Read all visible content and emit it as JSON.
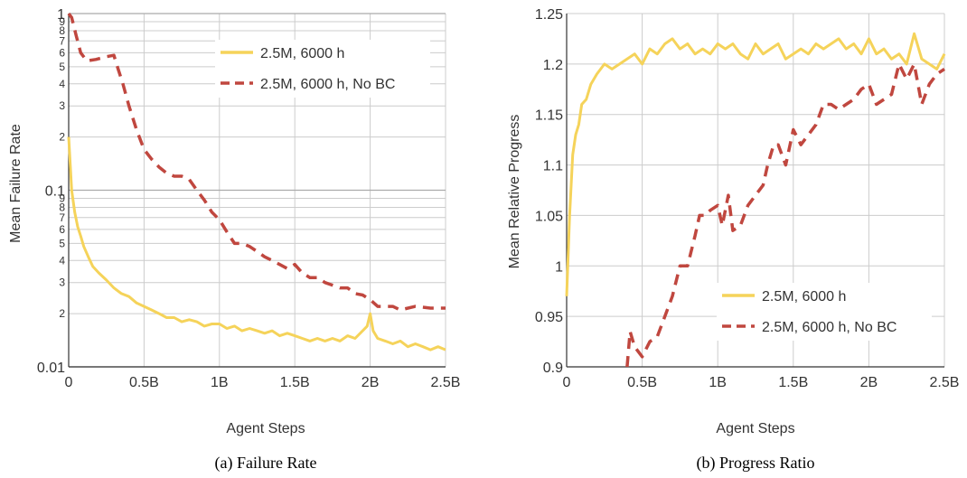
{
  "colors": {
    "fail_series_a": "#f5d35a",
    "fail_series_b": "#c0473f",
    "grid": "#cccccc",
    "axis": "#333333"
  },
  "chart_data": [
    {
      "type": "line",
      "caption": "(a) Failure Rate",
      "xlabel": "Agent Steps",
      "ylabel": "Mean Failure Rate",
      "yscale": "log",
      "xlim": [
        0,
        2.5
      ],
      "ylim": [
        0.01,
        1
      ],
      "x_ticks": [
        {
          "value": 0,
          "label": "0"
        },
        {
          "value": 0.5,
          "label": "0.5B"
        },
        {
          "value": 1,
          "label": "1B"
        },
        {
          "value": 1.5,
          "label": "1.5B"
        },
        {
          "value": 2,
          "label": "2B"
        },
        {
          "value": 2.5,
          "label": "2.5B"
        }
      ],
      "y_major_ticks": [
        {
          "value": 0.01,
          "label": "0.01"
        },
        {
          "value": 0.1,
          "label": "0.1"
        },
        {
          "value": 1,
          "label": "1"
        }
      ],
      "y_minor_ticks": [
        {
          "value": 0.02,
          "label": "2"
        },
        {
          "value": 0.03,
          "label": "3"
        },
        {
          "value": 0.04,
          "label": "4"
        },
        {
          "value": 0.05,
          "label": "5"
        },
        {
          "value": 0.06,
          "label": "6"
        },
        {
          "value": 0.07,
          "label": "7"
        },
        {
          "value": 0.08,
          "label": "8"
        },
        {
          "value": 0.09,
          "label": "9"
        },
        {
          "value": 0.2,
          "label": "2"
        },
        {
          "value": 0.3,
          "label": "3"
        },
        {
          "value": 0.4,
          "label": "4"
        },
        {
          "value": 0.5,
          "label": "5"
        },
        {
          "value": 0.6,
          "label": "6"
        },
        {
          "value": 0.7,
          "label": "7"
        },
        {
          "value": 0.8,
          "label": "8"
        },
        {
          "value": 0.9,
          "label": "9"
        }
      ],
      "legend_position": "top-right",
      "series": [
        {
          "name": "2.5M, 6000 h",
          "style": "solid",
          "x": [
            0.0,
            0.02,
            0.04,
            0.06,
            0.08,
            0.1,
            0.13,
            0.16,
            0.2,
            0.25,
            0.3,
            0.35,
            0.4,
            0.45,
            0.5,
            0.55,
            0.6,
            0.65,
            0.7,
            0.75,
            0.8,
            0.85,
            0.9,
            0.95,
            1.0,
            1.05,
            1.1,
            1.15,
            1.2,
            1.25,
            1.3,
            1.35,
            1.4,
            1.45,
            1.5,
            1.55,
            1.6,
            1.65,
            1.7,
            1.75,
            1.8,
            1.85,
            1.9,
            1.95,
            1.98,
            2.0,
            2.02,
            2.05,
            2.1,
            2.15,
            2.2,
            2.25,
            2.3,
            2.35,
            2.4,
            2.45,
            2.5
          ],
          "y": [
            0.2,
            0.1,
            0.075,
            0.062,
            0.055,
            0.048,
            0.042,
            0.037,
            0.034,
            0.031,
            0.028,
            0.026,
            0.025,
            0.023,
            0.022,
            0.021,
            0.02,
            0.019,
            0.019,
            0.018,
            0.0185,
            0.018,
            0.017,
            0.0175,
            0.0175,
            0.0165,
            0.017,
            0.016,
            0.0165,
            0.016,
            0.0155,
            0.016,
            0.015,
            0.0155,
            0.015,
            0.0145,
            0.014,
            0.0145,
            0.014,
            0.0145,
            0.014,
            0.015,
            0.0145,
            0.016,
            0.017,
            0.02,
            0.016,
            0.0145,
            0.014,
            0.0135,
            0.014,
            0.013,
            0.0135,
            0.013,
            0.0125,
            0.013,
            0.0125
          ]
        },
        {
          "name": "2.5M, 6000 h, No BC",
          "style": "dashed",
          "x": [
            0.0,
            0.02,
            0.05,
            0.08,
            0.12,
            0.18,
            0.25,
            0.3,
            0.33,
            0.36,
            0.4,
            0.45,
            0.5,
            0.55,
            0.6,
            0.65,
            0.7,
            0.75,
            0.8,
            0.85,
            0.9,
            0.95,
            1.0,
            1.05,
            1.1,
            1.15,
            1.2,
            1.25,
            1.3,
            1.35,
            1.4,
            1.45,
            1.5,
            1.55,
            1.6,
            1.65,
            1.7,
            1.75,
            1.8,
            1.85,
            1.9,
            1.95,
            2.0,
            2.05,
            2.1,
            2.15,
            2.2,
            2.3,
            2.4,
            2.5
          ],
          "y": [
            1.0,
            0.95,
            0.75,
            0.6,
            0.54,
            0.55,
            0.57,
            0.58,
            0.48,
            0.4,
            0.3,
            0.22,
            0.17,
            0.15,
            0.135,
            0.125,
            0.12,
            0.12,
            0.115,
            0.1,
            0.088,
            0.075,
            0.068,
            0.058,
            0.05,
            0.05,
            0.048,
            0.045,
            0.042,
            0.04,
            0.038,
            0.036,
            0.038,
            0.034,
            0.032,
            0.032,
            0.03,
            0.029,
            0.028,
            0.028,
            0.026,
            0.0255,
            0.024,
            0.022,
            0.022,
            0.022,
            0.021,
            0.022,
            0.0215,
            0.0215
          ]
        }
      ]
    },
    {
      "type": "line",
      "caption": "(b) Progress Ratio",
      "xlabel": "Agent Steps",
      "ylabel": "Mean Relative Progress",
      "xlim": [
        0,
        2.5
      ],
      "ylim": [
        0.9,
        1.25
      ],
      "x_ticks": [
        {
          "value": 0,
          "label": "0"
        },
        {
          "value": 0.5,
          "label": "0.5B"
        },
        {
          "value": 1,
          "label": "1B"
        },
        {
          "value": 1.5,
          "label": "1.5B"
        },
        {
          "value": 2,
          "label": "2B"
        },
        {
          "value": 2.5,
          "label": "2.5B"
        }
      ],
      "y_ticks": [
        {
          "value": 0.9,
          "label": "0.9"
        },
        {
          "value": 0.95,
          "label": "0.95"
        },
        {
          "value": 1.0,
          "label": "1"
        },
        {
          "value": 1.05,
          "label": "1.05"
        },
        {
          "value": 1.1,
          "label": "1.1"
        },
        {
          "value": 1.15,
          "label": "1.15"
        },
        {
          "value": 1.2,
          "label": "1.2"
        },
        {
          "value": 1.25,
          "label": "1.25"
        }
      ],
      "legend_position": "bottom-right",
      "series": [
        {
          "name": "2.5M, 6000 h",
          "style": "solid",
          "x": [
            0.0,
            0.02,
            0.04,
            0.06,
            0.08,
            0.1,
            0.13,
            0.16,
            0.2,
            0.25,
            0.3,
            0.35,
            0.4,
            0.45,
            0.5,
            0.55,
            0.6,
            0.65,
            0.7,
            0.75,
            0.8,
            0.85,
            0.9,
            0.95,
            1.0,
            1.05,
            1.1,
            1.15,
            1.2,
            1.25,
            1.3,
            1.35,
            1.4,
            1.45,
            1.5,
            1.55,
            1.6,
            1.65,
            1.7,
            1.75,
            1.8,
            1.85,
            1.9,
            1.95,
            2.0,
            2.05,
            2.1,
            2.15,
            2.2,
            2.25,
            2.3,
            2.35,
            2.4,
            2.45,
            2.5
          ],
          "y": [
            0.97,
            1.05,
            1.11,
            1.13,
            1.14,
            1.16,
            1.165,
            1.18,
            1.19,
            1.2,
            1.195,
            1.2,
            1.205,
            1.21,
            1.2,
            1.215,
            1.21,
            1.22,
            1.225,
            1.215,
            1.22,
            1.21,
            1.215,
            1.21,
            1.22,
            1.215,
            1.22,
            1.21,
            1.205,
            1.22,
            1.21,
            1.215,
            1.22,
            1.205,
            1.21,
            1.215,
            1.21,
            1.22,
            1.215,
            1.22,
            1.225,
            1.215,
            1.22,
            1.21,
            1.225,
            1.21,
            1.215,
            1.205,
            1.21,
            1.2,
            1.23,
            1.205,
            1.2,
            1.195,
            1.21
          ]
        },
        {
          "name": "2.5M, 6000 h, No BC",
          "style": "dashed",
          "x": [
            0.4,
            0.42,
            0.45,
            0.5,
            0.55,
            0.6,
            0.65,
            0.7,
            0.75,
            0.8,
            0.85,
            0.88,
            0.92,
            0.95,
            1.0,
            1.03,
            1.07,
            1.1,
            1.15,
            1.2,
            1.25,
            1.3,
            1.33,
            1.37,
            1.4,
            1.45,
            1.5,
            1.55,
            1.6,
            1.65,
            1.7,
            1.75,
            1.8,
            1.85,
            1.9,
            1.95,
            2.0,
            2.05,
            2.1,
            2.15,
            2.2,
            2.25,
            2.3,
            2.35,
            2.4,
            2.45,
            2.5
          ],
          "y": [
            0.9,
            0.935,
            0.92,
            0.91,
            0.925,
            0.93,
            0.95,
            0.97,
            1.0,
            1.0,
            1.03,
            1.05,
            1.05,
            1.055,
            1.06,
            1.04,
            1.07,
            1.035,
            1.04,
            1.06,
            1.07,
            1.08,
            1.1,
            1.12,
            1.12,
            1.1,
            1.135,
            1.12,
            1.13,
            1.14,
            1.16,
            1.16,
            1.155,
            1.16,
            1.165,
            1.175,
            1.18,
            1.16,
            1.165,
            1.17,
            1.2,
            1.185,
            1.2,
            1.16,
            1.18,
            1.19,
            1.195
          ]
        }
      ]
    }
  ]
}
